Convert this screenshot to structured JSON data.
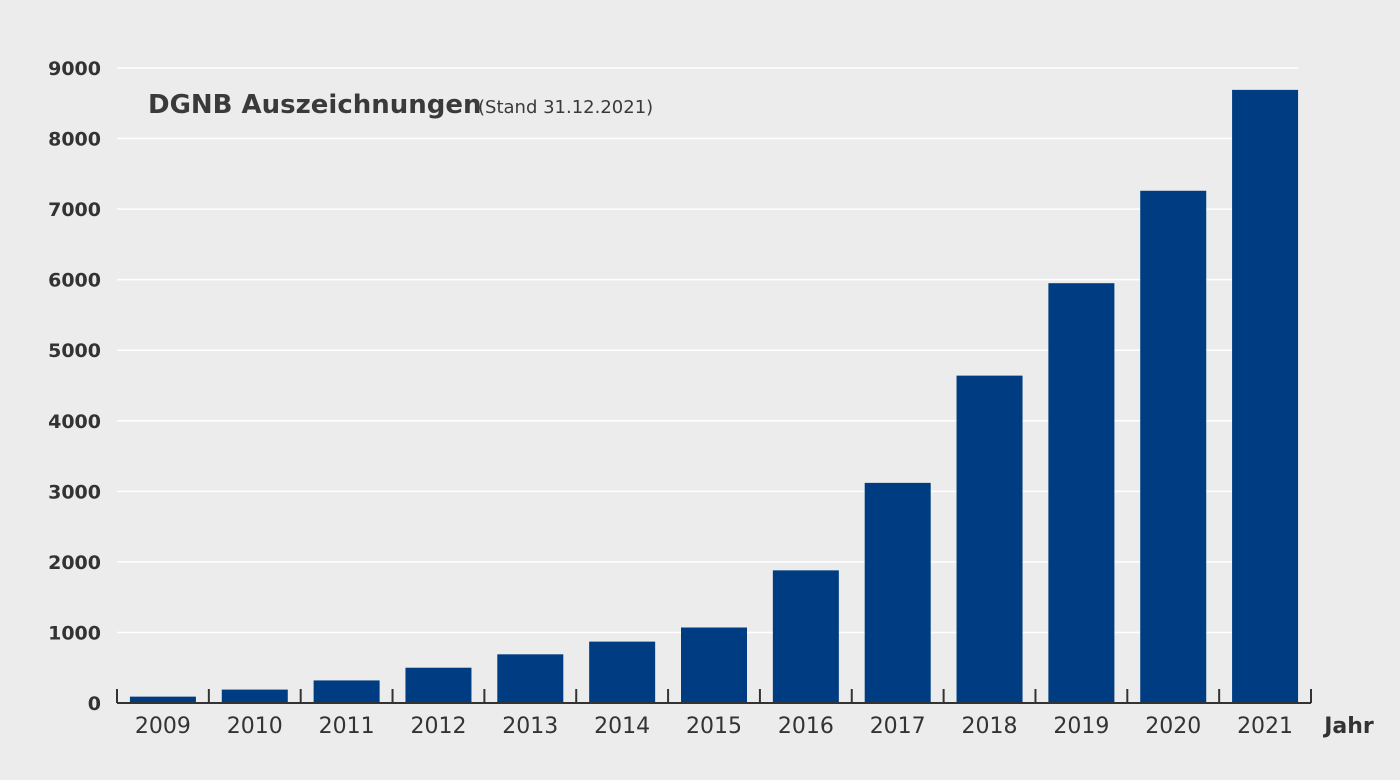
{
  "chart_data": {
    "type": "bar",
    "title": "DGNB Auszeichnungen",
    "subtitle": "(Stand 31.12.2021)",
    "xlabel": "Jahr",
    "ylabel": "",
    "categories": [
      "2009",
      "2010",
      "2011",
      "2012",
      "2013",
      "2014",
      "2015",
      "2016",
      "2017",
      "2018",
      "2019",
      "2020",
      "2021"
    ],
    "values": [
      90,
      190,
      320,
      500,
      690,
      870,
      1070,
      1880,
      3120,
      4640,
      5950,
      7260,
      8690
    ],
    "ylim": [
      0,
      9000
    ],
    "yticks": [
      "0",
      "1000",
      "2000",
      "3000",
      "4000",
      "5000",
      "6000",
      "7000",
      "8000",
      "9000"
    ],
    "grid": true,
    "legend": "none",
    "colors": {
      "bar": "#003c82",
      "grid": "#ffffff",
      "axis": "#333333",
      "background": "#ececec"
    }
  }
}
